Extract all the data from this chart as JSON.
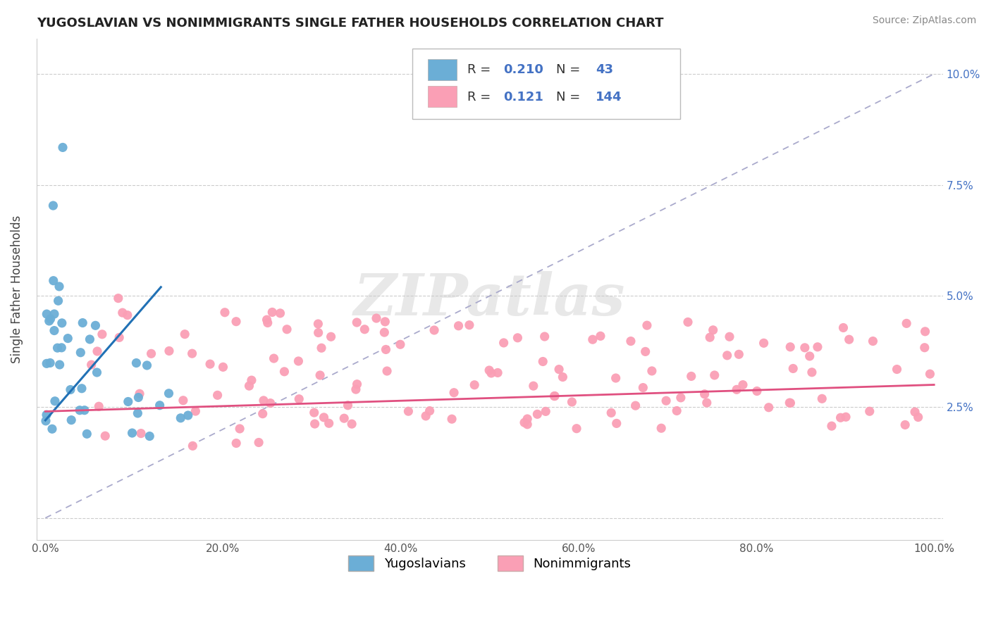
{
  "title": "YUGOSLAVIAN VS NONIMMIGRANTS SINGLE FATHER HOUSEHOLDS CORRELATION CHART",
  "source": "Source: ZipAtlas.com",
  "ylabel": "Single Father Households",
  "xlim": [
    0,
    100
  ],
  "xticks": [
    0,
    20,
    40,
    60,
    80,
    100
  ],
  "xtick_labels": [
    "0.0%",
    "20.0%",
    "40.0%",
    "60.0%",
    "80.0%",
    "100.0%"
  ],
  "yticks": [
    0,
    2.5,
    5.0,
    7.5,
    10.0
  ],
  "blue_color": "#6baed6",
  "pink_color": "#fa9fb5",
  "blue_line_color": "#2171b5",
  "pink_line_color": "#e05080",
  "diag_color": "#aaaacc",
  "R_blue": 0.21,
  "N_blue": 43,
  "R_pink": 0.121,
  "N_pink": 144,
  "watermark": "ZIPatlas",
  "blue_R_str": "0.210",
  "pink_R_str": "0.121",
  "blue_N_str": "43",
  "pink_N_str": "144",
  "legend_label_blue": "Yugoslavians",
  "legend_label_pink": "Nonimmigrants"
}
